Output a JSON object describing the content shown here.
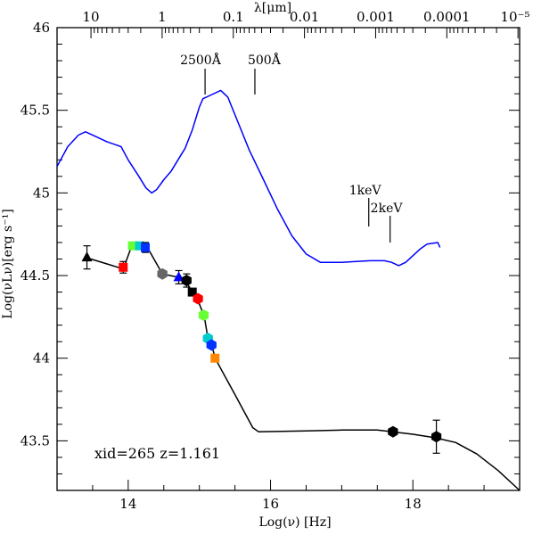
{
  "chart_data": {
    "type": "scatter",
    "xlabel": "Log(ν)  [Hz]",
    "ylabel": "Log(νLν)[erg s⁻¹]",
    "top_xlabel": "λ[μm]",
    "xlim": [
      13.0,
      19.5
    ],
    "ylim": [
      43.2,
      46.0
    ],
    "x_ticks": [
      "14",
      "16",
      "18"
    ],
    "y_ticks": [
      "43.5",
      "44",
      "44.5",
      "45",
      "45.5",
      "46"
    ],
    "top_ticks": [
      "10",
      "1",
      "0.1",
      "0.01",
      "0.001",
      "0.0001",
      "10⁻⁵"
    ],
    "info_text": "xid=265   z=1.161",
    "annotations": {
      "a2500": {
        "label": "2500Å",
        "x": 15.08
      },
      "a500": {
        "label": "500Å",
        "x": 15.78
      },
      "k1": {
        "label": "1keV",
        "x": 17.38
      },
      "k2": {
        "label": "2keV",
        "x": 17.68
      }
    },
    "series": [
      {
        "color": "#0000ff",
        "style": "line",
        "x": [
          13.0,
          13.15,
          13.3,
          13.4,
          13.55,
          13.7,
          13.9,
          14.0,
          14.15,
          14.25,
          14.33,
          14.4,
          14.5,
          14.6,
          14.7,
          14.8,
          14.9,
          15.0,
          15.05,
          15.15,
          15.3,
          15.4,
          15.55,
          15.7,
          15.9,
          16.1,
          16.3,
          16.5,
          16.7,
          16.8,
          17.0,
          17.2,
          17.4,
          17.6,
          17.7,
          17.8,
          17.9,
          18.0,
          18.1,
          18.2,
          18.35,
          18.38
        ],
        "y": [
          45.16,
          45.28,
          45.35,
          45.37,
          45.34,
          45.31,
          45.28,
          45.2,
          45.1,
          45.03,
          45.0,
          45.02,
          45.08,
          45.13,
          45.2,
          45.27,
          45.38,
          45.52,
          45.57,
          45.59,
          45.62,
          45.58,
          45.42,
          45.26,
          45.08,
          44.9,
          44.74,
          44.63,
          44.58,
          44.58,
          44.58,
          44.585,
          44.59,
          44.59,
          44.58,
          44.56,
          44.58,
          44.62,
          44.66,
          44.69,
          44.7,
          44.67
        ]
      },
      {
        "color": "#000000",
        "style": "line",
        "x": [
          13.4,
          13.93,
          14.05,
          14.27,
          14.48,
          14.7,
          14.82,
          14.9,
          14.98,
          15.07,
          15.12,
          15.18,
          15.22,
          15.5,
          15.75,
          15.83,
          16.5,
          17.0,
          17.5,
          17.8,
          18.0,
          18.3,
          18.6,
          18.9,
          19.2,
          19.5
        ],
        "y": [
          44.61,
          44.54,
          44.68,
          44.67,
          44.51,
          44.49,
          44.46,
          44.4,
          44.35,
          44.25,
          44.12,
          44.07,
          44.0,
          43.78,
          43.58,
          43.555,
          43.56,
          43.565,
          43.565,
          43.55,
          43.54,
          43.52,
          43.49,
          43.42,
          43.32,
          43.2
        ]
      }
    ],
    "points": [
      {
        "x": 13.42,
        "y": 44.61,
        "marker": "triangle",
        "color": "#000000",
        "err": 0.07
      },
      {
        "x": 13.93,
        "y": 44.55,
        "marker": "square",
        "color": "#ff0000",
        "err": 0.035
      },
      {
        "x": 14.06,
        "y": 44.68,
        "marker": "square",
        "color": "#66ff33",
        "err": 0
      },
      {
        "x": 14.16,
        "y": 44.68,
        "marker": "square",
        "color": "#00cccc",
        "err": 0
      },
      {
        "x": 14.24,
        "y": 44.67,
        "marker": "square",
        "color": "#0033ff",
        "err": 0.03
      },
      {
        "x": 14.48,
        "y": 44.51,
        "marker": "hexagon",
        "color": "#666666",
        "err": 0
      },
      {
        "x": 14.71,
        "y": 44.49,
        "marker": "triangle",
        "color": "#0000ff",
        "err": 0.04
      },
      {
        "x": 14.82,
        "y": 44.47,
        "marker": "hexagon",
        "color": "#000000",
        "err": 0.04
      },
      {
        "x": 14.9,
        "y": 44.4,
        "marker": "square",
        "color": "#000000",
        "err": 0
      },
      {
        "x": 14.98,
        "y": 44.36,
        "marker": "hexagon",
        "color": "#ff0000",
        "err": 0
      },
      {
        "x": 15.06,
        "y": 44.26,
        "marker": "hexagon",
        "color": "#66ff33",
        "err": 0
      },
      {
        "x": 15.12,
        "y": 44.12,
        "marker": "hexagon",
        "color": "#00cccc",
        "err": 0
      },
      {
        "x": 15.17,
        "y": 44.08,
        "marker": "hexagon",
        "color": "#0033ff",
        "err": 0
      },
      {
        "x": 15.22,
        "y": 44.0,
        "marker": "square",
        "color": "#ff8800",
        "err": 0
      },
      {
        "x": 17.72,
        "y": 43.555,
        "marker": "hexagon",
        "color": "#000000",
        "err": 0
      },
      {
        "x": 18.33,
        "y": 43.525,
        "marker": "hexagon",
        "color": "#000000",
        "err": 0.1
      }
    ]
  }
}
